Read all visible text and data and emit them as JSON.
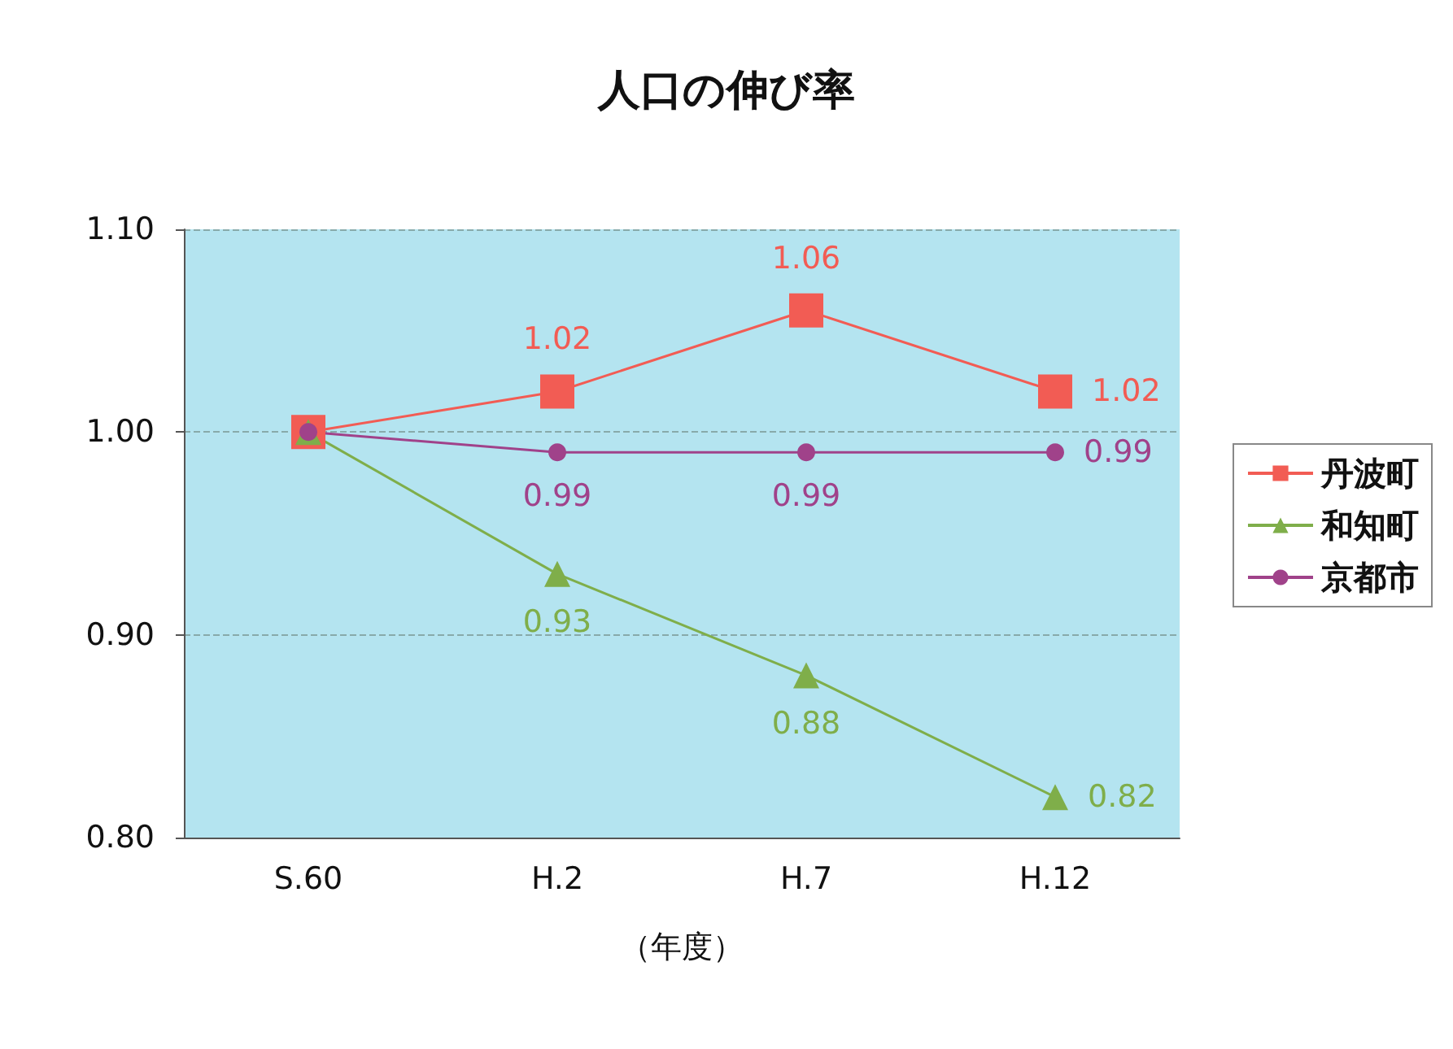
{
  "chart_data": {
    "type": "line",
    "title": "人口の伸び率",
    "xlabel": "（年度）",
    "categories": [
      "S.60",
      "H.2",
      "H.7",
      "H.12"
    ],
    "series": [
      {
        "name": "丹波町",
        "color": "#f25c54",
        "marker": "square",
        "values": [
          1.0,
          1.02,
          1.06,
          1.02
        ],
        "value_labels": [
          null,
          "1.02",
          "1.06",
          "1.02"
        ]
      },
      {
        "name": "和知町",
        "color": "#7fae4a",
        "marker": "triangle",
        "values": [
          1.0,
          0.93,
          0.88,
          0.82
        ],
        "value_labels": [
          null,
          "0.93",
          "0.88",
          "0.82"
        ]
      },
      {
        "name": "京都市",
        "color": "#a0428a",
        "marker": "circle",
        "values": [
          1.0,
          0.99,
          0.99,
          0.99
        ],
        "value_labels": [
          null,
          "0.99",
          "0.99",
          "0.99"
        ]
      }
    ],
    "ylim": [
      0.8,
      1.1
    ],
    "yticks": [
      {
        "value": 0.8,
        "label": "0.80"
      },
      {
        "value": 0.9,
        "label": "0.90"
      },
      {
        "value": 1.0,
        "label": "1.00"
      },
      {
        "value": 1.1,
        "label": "1.10"
      }
    ],
    "grid": "y",
    "legend": "right",
    "line_style": "solid"
  }
}
